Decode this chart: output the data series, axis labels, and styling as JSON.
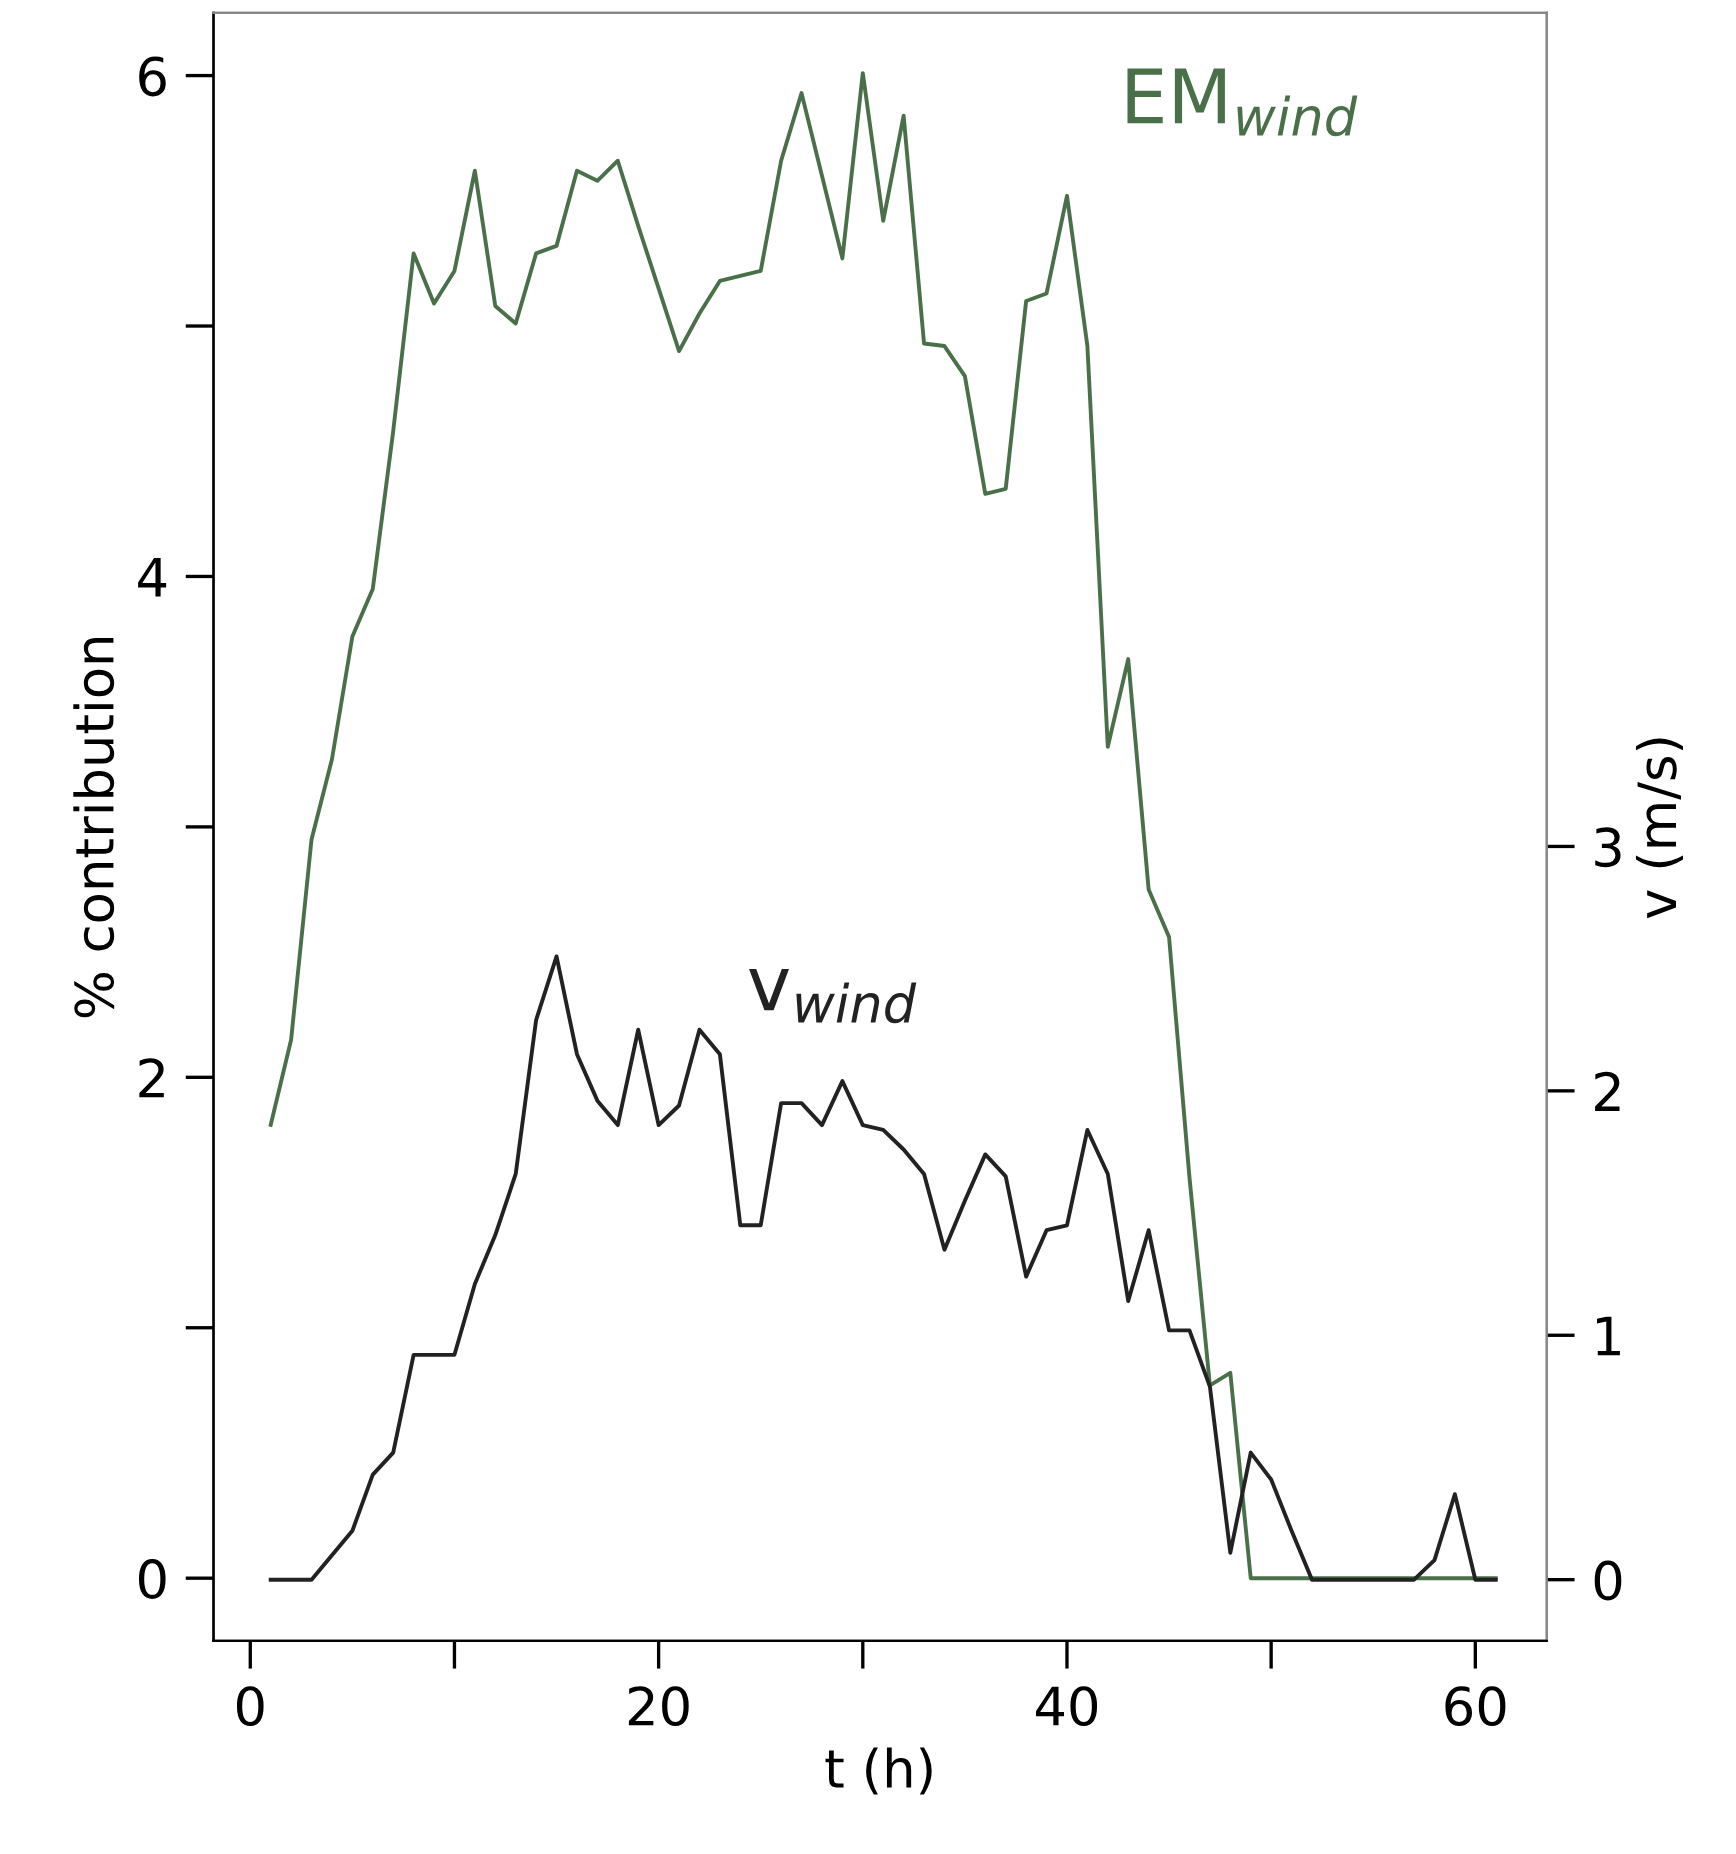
{
  "chart_data": {
    "type": "line",
    "xlabel": "t (h)",
    "ylabel": "% contribution",
    "y2label": "v (m/s)",
    "xlim": [
      -1.8,
      63.5
    ],
    "xticks": [
      0,
      {
        "value": 10,
        "label": null
      },
      20,
      {
        "value": 30,
        "label": null
      },
      40,
      {
        "value": 50,
        "label": null
      },
      60
    ],
    "ylim": [
      -0.25,
      6.25
    ],
    "yticks": [
      0,
      {
        "value": 1,
        "label": null
      },
      2,
      {
        "value": 3,
        "label": null
      },
      4,
      {
        "value": 5,
        "label": null
      },
      6
    ],
    "y2lim": [
      -0.25,
      6.41
    ],
    "y2ticks": [
      0,
      1,
      2,
      3
    ],
    "grid": false,
    "legend": false,
    "marker": "none",
    "line_style": "solid",
    "series": [
      {
        "name": "EM$_{wind}$",
        "color": "#4a704a",
        "x": [
          1,
          2,
          3,
          4,
          5,
          6,
          7,
          8,
          9,
          10,
          11,
          12,
          13,
          14,
          15,
          16,
          17,
          18,
          19,
          20,
          21,
          22,
          23,
          24,
          25,
          26,
          27,
          28,
          29,
          30,
          31,
          32,
          33,
          34,
          35,
          36,
          37,
          38,
          39,
          40,
          41,
          42,
          43,
          44,
          45,
          46,
          47,
          48,
          49,
          50,
          51,
          52,
          53,
          54,
          55,
          56,
          57,
          58,
          59,
          60,
          61
        ],
        "values": [
          1.81,
          2.15,
          2.95,
          3.27,
          3.76,
          3.95,
          4.58,
          5.29,
          5.09,
          5.22,
          5.62,
          5.08,
          5.01,
          5.29,
          5.32,
          5.62,
          5.58,
          5.66,
          5.4,
          5.15,
          4.9,
          5.05,
          5.18,
          5.2,
          5.22,
          5.66,
          5.93,
          5.6,
          5.27,
          6.01,
          5.42,
          5.84,
          4.93,
          4.92,
          4.8,
          4.33,
          4.35,
          5.1,
          5.13,
          5.52,
          4.92,
          3.32,
          3.67,
          2.75,
          2.56,
          1.6,
          0.77,
          0.82,
          0,
          0,
          0,
          0,
          0,
          0,
          0,
          0,
          0,
          0,
          0,
          0,
          0
        ]
      },
      {
        "name": "v$_{wind}$",
        "color": "#222222",
        "axis": "y2",
        "x": [
          1,
          2,
          3,
          4,
          5,
          6,
          7,
          8,
          9,
          10,
          11,
          12,
          13,
          14,
          15,
          16,
          17,
          18,
          19,
          20,
          21,
          22,
          23,
          24,
          25,
          26,
          27,
          28,
          29,
          30,
          31,
          32,
          33,
          34,
          35,
          36,
          37,
          38,
          39,
          40,
          41,
          42,
          43,
          44,
          45,
          46,
          47,
          48,
          49,
          50,
          51,
          52,
          53,
          54,
          55,
          56,
          57,
          58,
          59,
          60,
          61
        ],
        "values": [
          0,
          0,
          0,
          0.1,
          0.2,
          0.43,
          0.52,
          0.92,
          0.92,
          0.92,
          1.21,
          1.41,
          1.66,
          2.29,
          2.55,
          2.15,
          1.96,
          1.86,
          2.25,
          1.86,
          1.94,
          2.25,
          2.15,
          1.45,
          1.45,
          1.95,
          1.95,
          1.86,
          2.04,
          1.86,
          1.84,
          1.76,
          1.66,
          1.35,
          1.55,
          1.74,
          1.65,
          1.24,
          1.43,
          1.45,
          1.84,
          1.66,
          1.14,
          1.43,
          1.02,
          1.02,
          0.79,
          0.11,
          0.52,
          0.41,
          0.2,
          0,
          0,
          0,
          0,
          0,
          0,
          0.08,
          0.35,
          0,
          0
        ]
      }
    ]
  }
}
